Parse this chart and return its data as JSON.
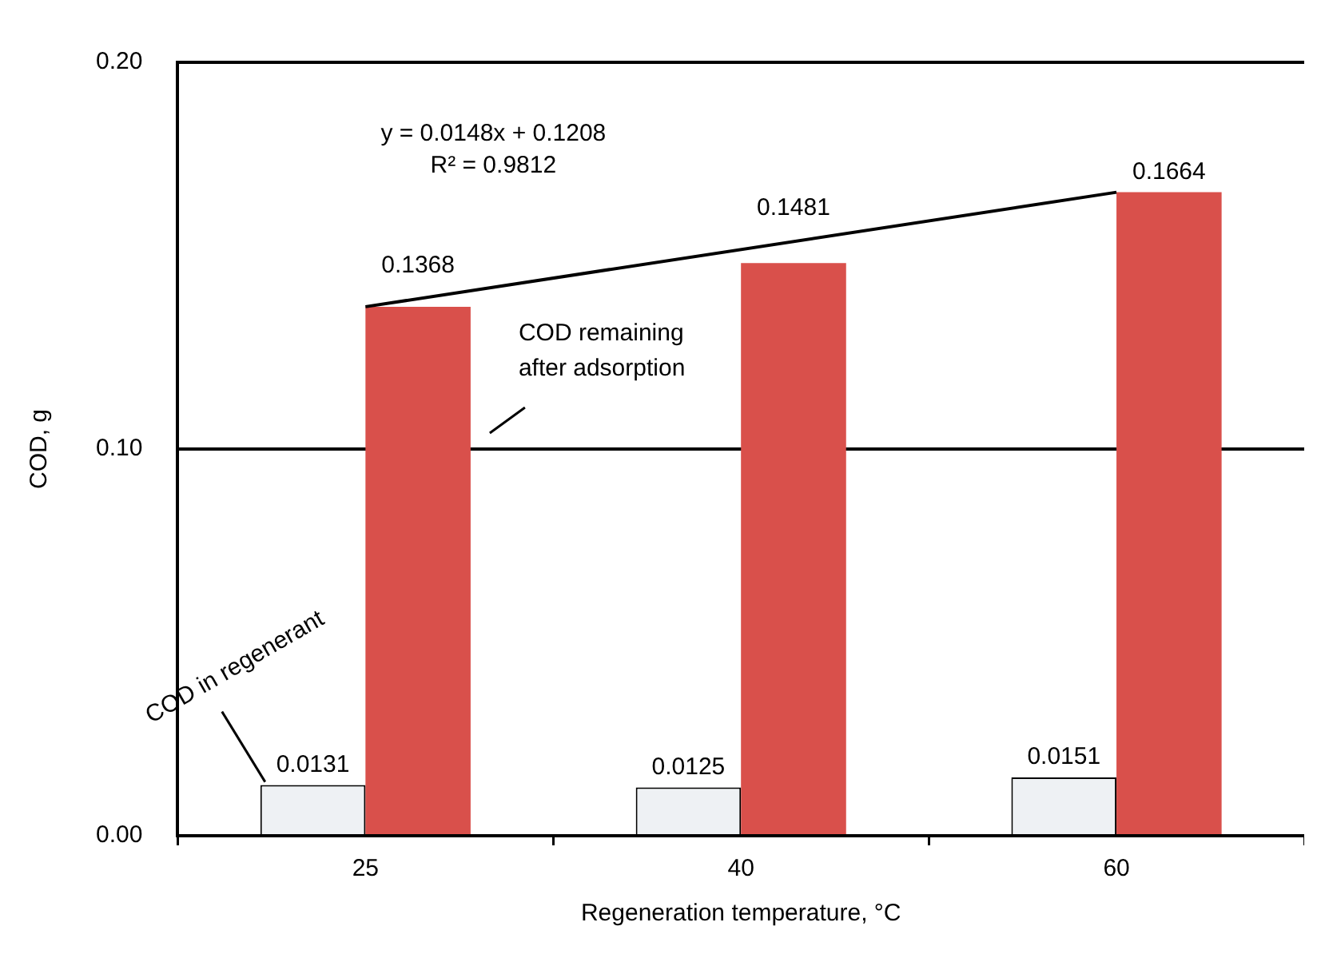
{
  "chart_data": {
    "type": "bar",
    "xlabel": "Regeneration temperature, °C",
    "ylabel": "COD, g",
    "categories": [
      "25",
      "40",
      "60"
    ],
    "series": [
      {
        "name": "COD in regenerant",
        "color": "#eef1f4",
        "values": [
          0.0131,
          0.0125,
          0.0151
        ]
      },
      {
        "name": "COD remaining after adsorption",
        "color": "#d9504b",
        "values": [
          0.1368,
          0.1481,
          0.1664
        ]
      },
      {
        "type": "line",
        "x": [
          "25",
          "60"
        ],
        "values": [
          0.1368,
          0.1664
        ],
        "value_labels": [
          null,
          null
        ],
        "color": "#000000"
      }
    ],
    "ylim": [
      0,
      0.2
    ],
    "yticks": [
      {
        "value": 0,
        "label": "0.00"
      },
      {
        "value": 0.1,
        "label": "0.10"
      },
      {
        "value": 0.2,
        "label": "0.20"
      }
    ],
    "grid": "y",
    "legend": false,
    "marker": "none",
    "line_style": "solid",
    "data_labels": true,
    "annotations": [
      "y = 0.0148x + 0.1208",
      "R² = 0.9812"
    ]
  }
}
